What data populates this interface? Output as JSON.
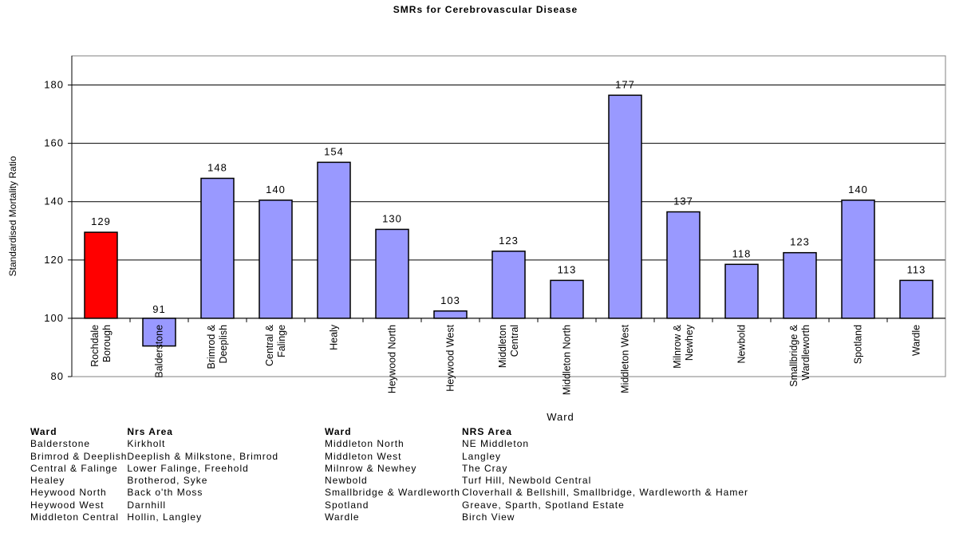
{
  "chart_data": {
    "type": "bar",
    "title": "SMRs for Cerebrovascular Disease",
    "xlabel": "Ward",
    "ylabel": "Standardised Mortality Ratio",
    "ylim": [
      80,
      190
    ],
    "yticks": [
      80,
      100,
      120,
      140,
      160,
      180
    ],
    "baseline": 100,
    "grid": true,
    "categories": [
      "Rochdale Borough",
      "Balderstone",
      "Brimrod & Deeplish",
      "Central & Falinge",
      "Healy",
      "Heywood North",
      "Heywood West",
      "Middleton Central",
      "Middleton North",
      "Middleton West",
      "Milnrow & Newhey",
      "Newbold",
      "Smallbridge & Wardleworth",
      "Spotland",
      "Wardle"
    ],
    "category_label_lines": [
      [
        "Rochdale",
        "Borough"
      ],
      [
        "Balderstone"
      ],
      [
        "Brimrod &",
        "Deeplish"
      ],
      [
        "Central &",
        "Falinge"
      ],
      [
        "Healy"
      ],
      [
        "Heywood North"
      ],
      [
        "Heywood West"
      ],
      [
        "Middleton",
        "Central"
      ],
      [
        "Middleton North"
      ],
      [
        "Middleton West"
      ],
      [
        "Milnrow &",
        "Newhey"
      ],
      [
        "Newbold"
      ],
      [
        "Smallbridge &",
        "Wardleworth"
      ],
      [
        "Spotland"
      ],
      [
        "Wardle"
      ]
    ],
    "values": [
      129.5,
      90.5,
      148,
      140.5,
      153.5,
      130.5,
      102.5,
      123,
      113,
      176.5,
      136.5,
      118.5,
      122.5,
      140.5,
      113
    ],
    "data_labels": [
      "129",
      "91",
      "148",
      "140",
      "154",
      "130",
      "103",
      "123",
      "113",
      "177",
      "137",
      "118",
      "123",
      "140",
      "113"
    ],
    "bar_colors": [
      "#ff0000",
      "#9999ff",
      "#9999ff",
      "#9999ff",
      "#9999ff",
      "#9999ff",
      "#9999ff",
      "#9999ff",
      "#9999ff",
      "#9999ff",
      "#9999ff",
      "#9999ff",
      "#9999ff",
      "#9999ff",
      "#9999ff"
    ]
  },
  "legend": {
    "left": {
      "header_ward": "Ward",
      "header_area": "Nrs Area",
      "rows": [
        {
          "ward": "Balderstone",
          "area": "Kirkholt"
        },
        {
          "ward": "Brimrod & Deeplish",
          "area": "Deeplish & Milkstone, Brimrod"
        },
        {
          "ward": "Central & Falinge",
          "area": "Lower Falinge, Freehold"
        },
        {
          "ward": "Healey",
          "area": "Brotherod, Syke"
        },
        {
          "ward": "Heywood North",
          "area": "Back o'th Moss"
        },
        {
          "ward": "Heywood West",
          "area": "Darnhill"
        },
        {
          "ward": "Middleton Central",
          "area": "Hollin, Langley"
        }
      ]
    },
    "right": {
      "header_ward": "Ward",
      "header_area": "NRS Area",
      "rows": [
        {
          "ward": "Middleton North",
          "area": "NE Middleton"
        },
        {
          "ward": "Middleton West",
          "area": "Langley"
        },
        {
          "ward": "Milnrow & Newhey",
          "area": "The Cray"
        },
        {
          "ward": "Newbold",
          "area": "Turf Hill, Newbold Central"
        },
        {
          "ward": "Smallbridge & Wardleworth",
          "area": "Cloverhall & Bellshill, Smallbridge, Wardleworth & Hamer"
        },
        {
          "ward": "Spotland",
          "area": "Greave, Sparth, Spotland Estate"
        },
        {
          "ward": "Wardle",
          "area": "Birch View"
        }
      ]
    }
  }
}
